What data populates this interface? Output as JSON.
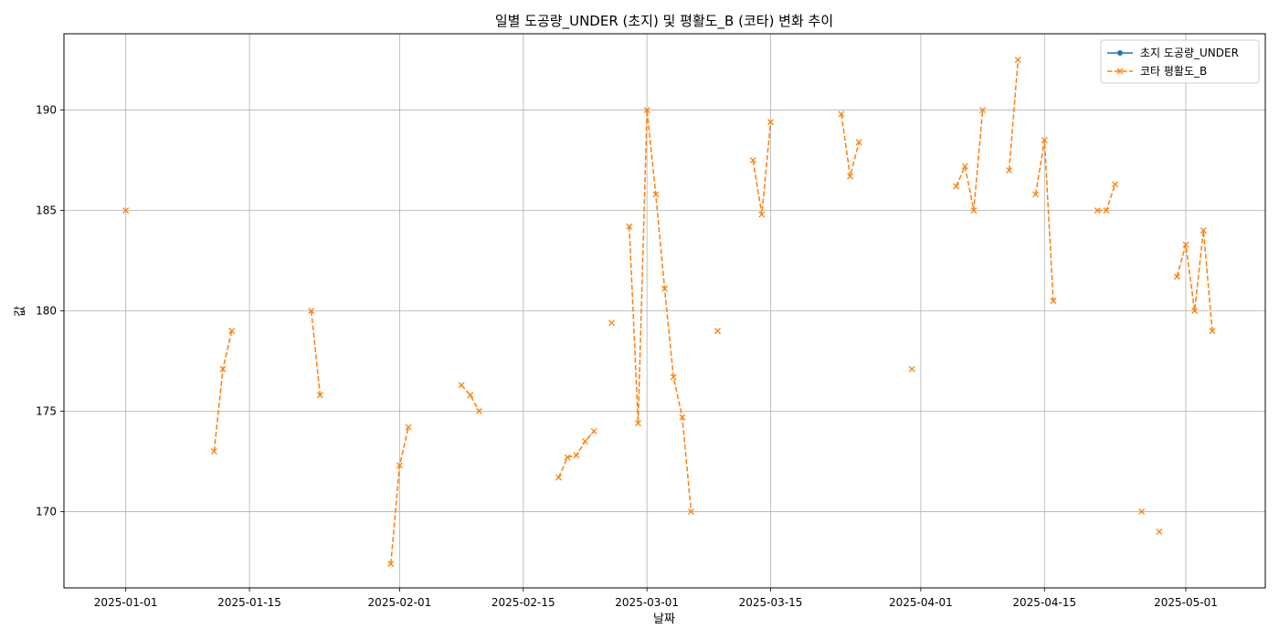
{
  "chart_data": {
    "type": "line",
    "title": "일별 도공량_UNDER (초지) 및 평활도_B (코타) 변화 추이",
    "xlabel": "날짜",
    "ylabel": "값",
    "grid": true,
    "legend_position": "top-right",
    "x_ticks": [
      "2025-01-01",
      "2025-01-15",
      "2025-02-01",
      "2025-02-15",
      "2025-03-01",
      "2025-03-15",
      "2025-04-01",
      "2025-04-15",
      "2025-05-01"
    ],
    "y_ticks": [
      "170",
      "175",
      "180",
      "185",
      "190"
    ],
    "xlim": [
      "2024-12-25",
      "2025-05-10"
    ],
    "ylim": [
      166.2,
      193.8
    ],
    "series": [
      {
        "name": "초지 도공량_UNDER",
        "color": "#1f77b4",
        "marker": "circle",
        "line_style": "solid",
        "points": []
      },
      {
        "name": "코타 평활도_B",
        "color": "#ff7f0e",
        "marker": "x",
        "line_style": "dashed",
        "points": [
          {
            "x": "2025-01-01",
            "y": 185.0
          },
          {
            "x": "2025-01-02",
            "y": null
          },
          {
            "x": "2025-01-11",
            "y": 173.0
          },
          {
            "x": "2025-01-12",
            "y": 177.1
          },
          {
            "x": "2025-01-13",
            "y": 179.0
          },
          {
            "x": "2025-01-14",
            "y": null
          },
          {
            "x": "2025-01-22",
            "y": 180.0
          },
          {
            "x": "2025-01-23",
            "y": 175.8
          },
          {
            "x": "2025-01-24",
            "y": null
          },
          {
            "x": "2025-01-31",
            "y": 167.4
          },
          {
            "x": "2025-02-01",
            "y": 172.3
          },
          {
            "x": "2025-02-02",
            "y": 174.2
          },
          {
            "x": "2025-02-03",
            "y": null
          },
          {
            "x": "2025-02-08",
            "y": 176.3
          },
          {
            "x": "2025-02-09",
            "y": 175.8
          },
          {
            "x": "2025-02-10",
            "y": 175.0
          },
          {
            "x": "2025-02-11",
            "y": null
          },
          {
            "x": "2025-02-19",
            "y": 171.7
          },
          {
            "x": "2025-02-20",
            "y": 172.7
          },
          {
            "x": "2025-02-21",
            "y": 172.8
          },
          {
            "x": "2025-02-22",
            "y": 173.5
          },
          {
            "x": "2025-02-23",
            "y": 174.0
          },
          {
            "x": "2025-02-24",
            "y": null
          },
          {
            "x": "2025-02-25",
            "y": 179.4
          },
          {
            "x": "2025-02-26",
            "y": null
          },
          {
            "x": "2025-02-27",
            "y": 184.2
          },
          {
            "x": "2025-02-28",
            "y": 174.4
          },
          {
            "x": "2025-03-01",
            "y": 190.0
          },
          {
            "x": "2025-03-02",
            "y": 185.8
          },
          {
            "x": "2025-03-03",
            "y": 181.1
          },
          {
            "x": "2025-03-04",
            "y": 176.7
          },
          {
            "x": "2025-03-05",
            "y": 174.7
          },
          {
            "x": "2025-03-06",
            "y": 170.0
          },
          {
            "x": "2025-03-07",
            "y": null
          },
          {
            "x": "2025-03-09",
            "y": 179.0
          },
          {
            "x": "2025-03-10",
            "y": null
          },
          {
            "x": "2025-03-13",
            "y": 187.5
          },
          {
            "x": "2025-03-14",
            "y": 184.8
          },
          {
            "x": "2025-03-15",
            "y": 189.4
          },
          {
            "x": "2025-03-16",
            "y": null
          },
          {
            "x": "2025-03-23",
            "y": 189.8
          },
          {
            "x": "2025-03-24",
            "y": 186.7
          },
          {
            "x": "2025-03-25",
            "y": 188.4
          },
          {
            "x": "2025-03-26",
            "y": null
          },
          {
            "x": "2025-03-31",
            "y": 177.1
          },
          {
            "x": "2025-04-01",
            "y": null
          },
          {
            "x": "2025-04-05",
            "y": 186.2
          },
          {
            "x": "2025-04-06",
            "y": 187.2
          },
          {
            "x": "2025-04-07",
            "y": 185.0
          },
          {
            "x": "2025-04-08",
            "y": 190.0
          },
          {
            "x": "2025-04-09",
            "y": null
          },
          {
            "x": "2025-04-11",
            "y": 187.0
          },
          {
            "x": "2025-04-12",
            "y": 192.5
          },
          {
            "x": "2025-04-13",
            "y": null
          },
          {
            "x": "2025-04-14",
            "y": 185.8
          },
          {
            "x": "2025-04-15",
            "y": 188.5
          },
          {
            "x": "2025-04-16",
            "y": 180.5
          },
          {
            "x": "2025-04-17",
            "y": null
          },
          {
            "x": "2025-04-21",
            "y": 185.0
          },
          {
            "x": "2025-04-22",
            "y": 185.0
          },
          {
            "x": "2025-04-23",
            "y": 186.3
          },
          {
            "x": "2025-04-24",
            "y": null
          },
          {
            "x": "2025-04-26",
            "y": 170.0
          },
          {
            "x": "2025-04-27",
            "y": null
          },
          {
            "x": "2025-04-28",
            "y": 169.0
          },
          {
            "x": "2025-04-29",
            "y": null
          },
          {
            "x": "2025-04-30",
            "y": 181.7
          },
          {
            "x": "2025-05-01",
            "y": 183.3
          },
          {
            "x": "2025-05-02",
            "y": 180.0
          },
          {
            "x": "2025-05-03",
            "y": 184.0
          },
          {
            "x": "2025-05-04",
            "y": 179.0
          }
        ]
      }
    ]
  }
}
